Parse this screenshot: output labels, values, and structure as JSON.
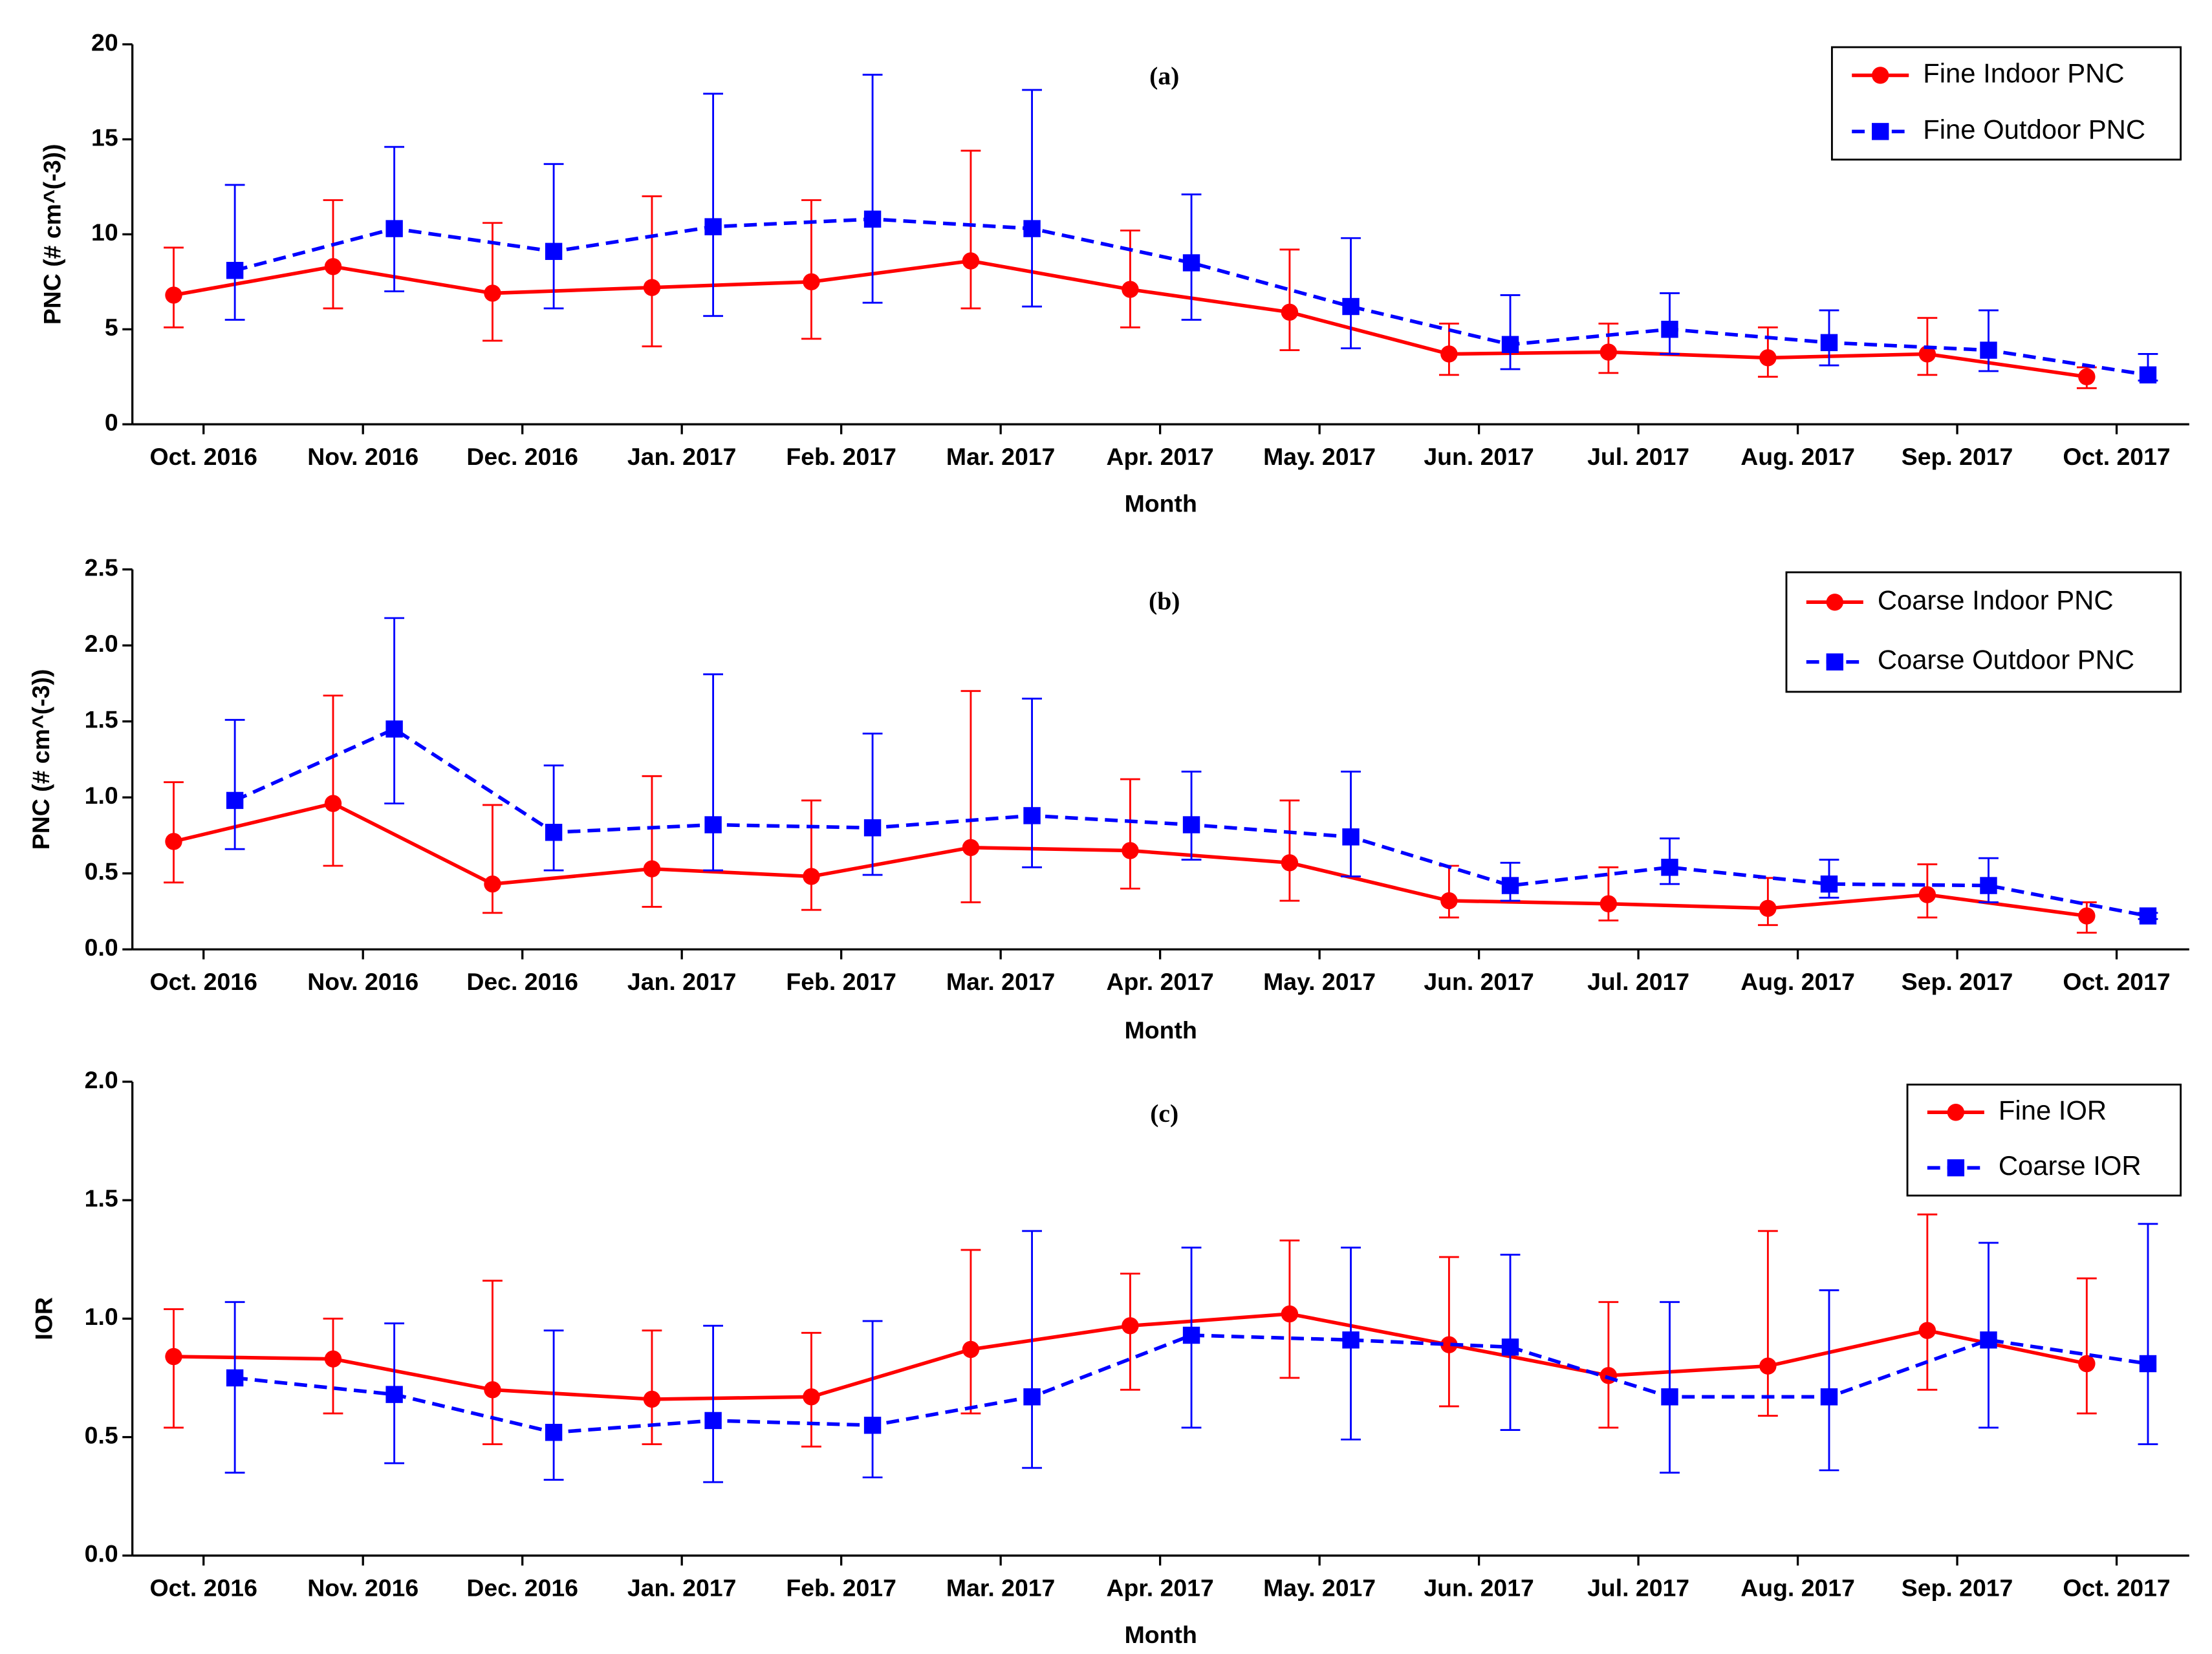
{
  "chart_data": [
    {
      "type": "line",
      "title": "(a)",
      "xlabel": "Month",
      "ylabel": "PNC (# cm^(-3))",
      "categories": [
        "Oct. 2016",
        "Nov. 2016",
        "Dec. 2016",
        "Jan. 2017",
        "Feb. 2017",
        "Mar. 2017",
        "Apr. 2017",
        "May. 2017",
        "Jun. 2017",
        "Jul. 2017",
        "Aug. 2017",
        "Sep. 2017",
        "Oct. 2017"
      ],
      "ylim": [
        0,
        20
      ],
      "yticks": [
        0,
        5,
        10,
        15,
        20
      ],
      "legend": "upper right",
      "series": [
        {
          "name": "Fine Indoor PNC",
          "color": "#ff0000",
          "marker": "circle",
          "linestyle": "solid",
          "values": [
            6.8,
            8.3,
            6.9,
            7.2,
            7.5,
            8.6,
            7.1,
            5.9,
            3.7,
            3.8,
            3.5,
            3.7,
            2.5
          ],
          "lower": [
            5.1,
            6.1,
            4.4,
            4.1,
            4.5,
            6.1,
            5.1,
            3.9,
            2.6,
            2.7,
            2.5,
            2.6,
            1.9
          ],
          "upper": [
            9.3,
            11.8,
            10.6,
            12.0,
            11.8,
            14.4,
            10.2,
            9.2,
            5.3,
            5.3,
            5.1,
            5.6,
            3.0
          ]
        },
        {
          "name": "Fine Outdoor PNC",
          "color": "#0000ff",
          "marker": "square",
          "linestyle": "dashed",
          "values": [
            8.1,
            10.3,
            9.1,
            10.4,
            10.8,
            10.3,
            8.5,
            6.2,
            4.2,
            5.0,
            4.3,
            3.9,
            2.6
          ],
          "lower": [
            5.5,
            7.0,
            6.1,
            5.7,
            6.4,
            6.2,
            5.5,
            4.0,
            2.9,
            3.7,
            3.1,
            2.8,
            2.3
          ],
          "upper": [
            12.6,
            14.6,
            13.7,
            17.4,
            18.4,
            17.6,
            12.1,
            9.8,
            6.8,
            6.9,
            6.0,
            6.0,
            3.7
          ]
        }
      ]
    },
    {
      "type": "line",
      "title": "(b)",
      "xlabel": "Month",
      "ylabel": "PNC (# cm^(-3))",
      "categories": [
        "Oct. 2016",
        "Nov. 2016",
        "Dec. 2016",
        "Jan. 2017",
        "Feb. 2017",
        "Mar. 2017",
        "Apr. 2017",
        "May. 2017",
        "Jun. 2017",
        "Jul. 2017",
        "Aug. 2017",
        "Sep. 2017",
        "Oct. 2017"
      ],
      "ylim": [
        0,
        2.5
      ],
      "yticks": [
        {
          "value": 0,
          "label": "0.0"
        },
        0.5,
        {
          "value": 1,
          "label": "1.0"
        },
        1.5,
        {
          "value": 2,
          "label": "2.0"
        },
        2.5
      ],
      "legend": "upper right",
      "series": [
        {
          "name": "Coarse Indoor PNC",
          "color": "#ff0000",
          "marker": "circle",
          "linestyle": "solid",
          "values": [
            0.71,
            0.96,
            0.43,
            0.53,
            0.48,
            0.67,
            0.65,
            0.57,
            0.32,
            0.3,
            0.27,
            0.36,
            0.22
          ],
          "lower": [
            0.44,
            0.55,
            0.24,
            0.28,
            0.26,
            0.31,
            0.4,
            0.32,
            0.21,
            0.19,
            0.16,
            0.21,
            0.11
          ],
          "upper": [
            1.1,
            1.67,
            0.95,
            1.14,
            0.98,
            1.7,
            1.12,
            0.98,
            0.55,
            0.54,
            0.47,
            0.56,
            0.31
          ]
        },
        {
          "name": "Coarse Outdoor PNC",
          "color": "#0000ff",
          "marker": "square",
          "linestyle": "dashed",
          "values": [
            0.98,
            1.45,
            0.77,
            0.82,
            0.8,
            0.88,
            0.82,
            0.74,
            0.42,
            0.54,
            0.43,
            0.42,
            0.22
          ],
          "lower": [
            0.66,
            0.96,
            0.52,
            0.52,
            0.49,
            0.54,
            0.59,
            0.48,
            0.32,
            0.43,
            0.34,
            0.31,
            0.2
          ],
          "upper": [
            1.51,
            2.18,
            1.21,
            1.81,
            1.42,
            1.65,
            1.17,
            1.17,
            0.57,
            0.73,
            0.59,
            0.6,
            0.24
          ]
        }
      ]
    },
    {
      "type": "line",
      "title": "(c)",
      "xlabel": "Month",
      "ylabel": "IOR",
      "categories": [
        "Oct. 2016",
        "Nov. 2016",
        "Dec. 2016",
        "Jan. 2017",
        "Feb. 2017",
        "Mar. 2017",
        "Apr. 2017",
        "May. 2017",
        "Jun. 2017",
        "Jul. 2017",
        "Aug. 2017",
        "Sep. 2017",
        "Oct. 2017"
      ],
      "ylim": [
        0,
        2
      ],
      "yticks": [
        {
          "value": 0,
          "label": "0.0"
        },
        0.5,
        {
          "value": 1,
          "label": "1.0"
        },
        1.5,
        {
          "value": 2,
          "label": "2.0"
        }
      ],
      "legend": "upper right",
      "series": [
        {
          "name": "Fine IOR",
          "color": "#ff0000",
          "marker": "circle",
          "linestyle": "solid",
          "values": [
            0.84,
            0.83,
            0.7,
            0.66,
            0.67,
            0.87,
            0.97,
            1.02,
            0.89,
            0.76,
            0.8,
            0.95,
            0.81
          ],
          "lower": [
            0.54,
            0.6,
            0.47,
            0.47,
            0.46,
            0.6,
            0.7,
            0.75,
            0.63,
            0.54,
            0.59,
            0.7,
            0.6
          ],
          "upper": [
            1.04,
            1.0,
            1.16,
            0.95,
            0.94,
            1.29,
            1.19,
            1.33,
            1.26,
            1.07,
            1.37,
            1.44,
            1.17
          ]
        },
        {
          "name": "Coarse IOR",
          "color": "#0000ff",
          "marker": "square",
          "linestyle": "dashed",
          "values": [
            0.75,
            0.68,
            0.52,
            0.57,
            0.55,
            0.67,
            0.93,
            0.91,
            0.88,
            0.67,
            0.67,
            0.91,
            0.81
          ],
          "lower": [
            0.35,
            0.39,
            0.32,
            0.31,
            0.33,
            0.37,
            0.54,
            0.49,
            0.53,
            0.35,
            0.36,
            0.54,
            0.47
          ],
          "upper": [
            1.07,
            0.98,
            0.95,
            0.97,
            0.99,
            1.37,
            1.3,
            1.3,
            1.27,
            1.07,
            1.12,
            1.32,
            1.4
          ]
        }
      ]
    }
  ]
}
